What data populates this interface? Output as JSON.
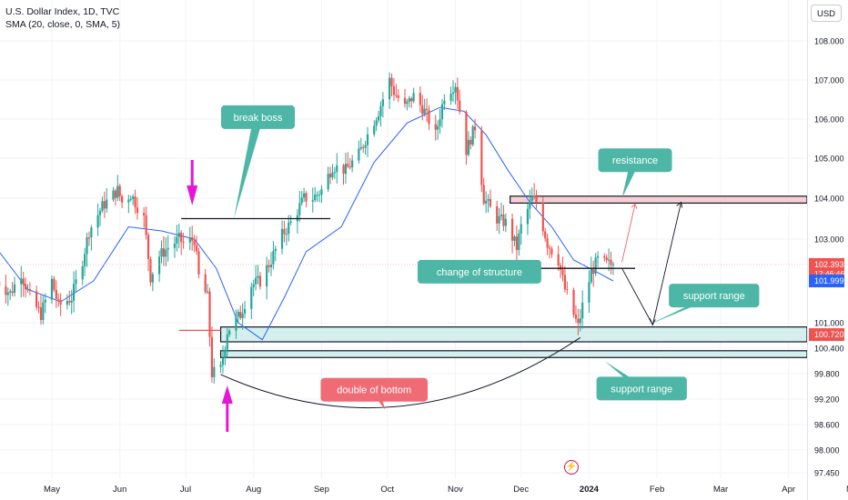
{
  "header": {
    "title": "U.S. Dollar Index, 1D, TVC",
    "indicator": "SMA (20, close, 0, SMA, 5)",
    "currency_button": "USD"
  },
  "icons": {
    "event_marker": "lightning-bolt-icon",
    "top_arrow": "arrow-down-icon",
    "bottom_arrow": "arrow-up-icon"
  },
  "colors": {
    "up": "#26a69a",
    "down": "#ef5350",
    "sma": "#2962ff",
    "label_teal": "#4db6a6",
    "label_red": "#ef6b75",
    "magenta": "#e616d9",
    "resistance_fill": "#f6cfd5",
    "support_fill": "#d4efee"
  },
  "chart_data": {
    "type": "candlestick",
    "ylim": [
      97.3,
      108.4
    ],
    "y_ticks": [
      "108.000",
      "107.000",
      "106.000",
      "105.000",
      "104.000",
      "103.000",
      "101.000",
      "100.400",
      "99.800",
      "99.200",
      "98.600",
      "98.000",
      "97.450"
    ],
    "x_ticks": [
      {
        "label": "May",
        "date": "2023-05-01"
      },
      {
        "label": "Jun",
        "date": "2023-06-01"
      },
      {
        "label": "Jul",
        "date": "2023-07-01"
      },
      {
        "label": "Aug",
        "date": "2023-08-01"
      },
      {
        "label": "Sep",
        "date": "2023-09-01"
      },
      {
        "label": "Oct",
        "date": "2023-10-01"
      },
      {
        "label": "Nov",
        "date": "2023-11-01"
      },
      {
        "label": "Dec",
        "date": "2023-12-01"
      },
      {
        "label": "2024",
        "date": "2024-01-01",
        "bold": true
      },
      {
        "label": "Feb",
        "date": "2024-02-01"
      },
      {
        "label": "Mar",
        "date": "2024-03-01"
      },
      {
        "label": "Apr",
        "date": "2024-04-01"
      },
      {
        "label": "May",
        "date": "2024-05-01"
      }
    ],
    "price_path": [
      [
        "2023-04-06",
        102.0
      ],
      [
        "2023-04-12",
        101.7
      ],
      [
        "2023-04-17",
        102.2
      ],
      [
        "2023-04-21",
        101.6
      ],
      [
        "2023-04-26",
        101.2
      ],
      [
        "2023-05-01",
        102.0
      ],
      [
        "2023-05-04",
        101.4
      ],
      [
        "2023-05-10",
        101.6
      ],
      [
        "2023-05-15",
        102.5
      ],
      [
        "2023-05-18",
        103.2
      ],
      [
        "2023-05-24",
        103.8
      ],
      [
        "2023-05-31",
        104.2
      ],
      [
        "2023-06-02",
        103.9
      ],
      [
        "2023-06-06",
        104.1
      ],
      [
        "2023-06-12",
        103.5
      ],
      [
        "2023-06-15",
        102.1
      ],
      [
        "2023-06-19",
        102.6
      ],
      [
        "2023-06-23",
        102.8
      ],
      [
        "2023-06-28",
        103.0
      ],
      [
        "2023-06-30",
        102.9
      ],
      [
        "2023-07-05",
        103.0
      ],
      [
        "2023-07-07",
        102.1
      ],
      [
        "2023-07-11",
        101.6
      ],
      [
        "2023-07-13",
        99.8
      ],
      [
        "2023-07-17",
        99.9
      ],
      [
        "2023-07-20",
        100.8
      ],
      [
        "2023-07-26",
        101.2
      ],
      [
        "2023-07-31",
        101.9
      ],
      [
        "2023-08-04",
        102.0
      ],
      [
        "2023-08-09",
        102.5
      ],
      [
        "2023-08-14",
        103.1
      ],
      [
        "2023-08-18",
        103.4
      ],
      [
        "2023-08-24",
        104.0
      ],
      [
        "2023-08-28",
        104.0
      ],
      [
        "2023-09-01",
        104.2
      ],
      [
        "2023-09-06",
        104.8
      ],
      [
        "2023-09-12",
        104.7
      ],
      [
        "2023-09-18",
        105.1
      ],
      [
        "2023-09-22",
        105.6
      ],
      [
        "2023-09-27",
        106.2
      ],
      [
        "2023-10-02",
        107.0
      ],
      [
        "2023-10-04",
        106.7
      ],
      [
        "2023-10-09",
        106.3
      ],
      [
        "2023-10-13",
        106.6
      ],
      [
        "2023-10-18",
        106.2
      ],
      [
        "2023-10-23",
        105.6
      ],
      [
        "2023-10-27",
        106.6
      ],
      [
        "2023-11-01",
        106.9
      ],
      [
        "2023-11-06",
        105.2
      ],
      [
        "2023-11-10",
        105.8
      ],
      [
        "2023-11-14",
        104.0
      ],
      [
        "2023-11-20",
        103.5
      ],
      [
        "2023-11-24",
        103.4
      ],
      [
        "2023-11-29",
        102.8
      ],
      [
        "2023-12-01",
        103.3
      ],
      [
        "2023-12-06",
        104.0
      ],
      [
        "2023-12-08",
        103.9
      ],
      [
        "2023-12-13",
        102.9
      ],
      [
        "2023-12-18",
        102.5
      ],
      [
        "2023-12-21",
        101.8
      ],
      [
        "2023-12-27",
        100.9
      ],
      [
        "2023-12-29",
        101.4
      ],
      [
        "2024-01-02",
        102.2
      ],
      [
        "2024-01-05",
        102.5
      ],
      [
        "2024-01-09",
        102.4
      ],
      [
        "2024-01-12",
        102.393
      ]
    ],
    "sma_path": [
      [
        "2023-04-04",
        102.9
      ],
      [
        "2023-04-20",
        101.8
      ],
      [
        "2023-05-05",
        101.5
      ],
      [
        "2023-05-20",
        102.0
      ],
      [
        "2023-06-05",
        103.3
      ],
      [
        "2023-06-20",
        103.2
      ],
      [
        "2023-07-05",
        103.0
      ],
      [
        "2023-07-15",
        102.3
      ],
      [
        "2023-07-25",
        101.0
      ],
      [
        "2023-08-05",
        100.6
      ],
      [
        "2023-08-15",
        101.6
      ],
      [
        "2023-08-25",
        102.7
      ],
      [
        "2023-09-10",
        103.3
      ],
      [
        "2023-09-25",
        104.9
      ],
      [
        "2023-10-10",
        105.9
      ],
      [
        "2023-10-25",
        106.3
      ],
      [
        "2023-11-05",
        106.2
      ],
      [
        "2023-11-15",
        105.6
      ],
      [
        "2023-11-25",
        104.7
      ],
      [
        "2023-12-05",
        103.9
      ],
      [
        "2023-12-15",
        103.3
      ],
      [
        "2023-12-25",
        102.5
      ],
      [
        "2024-01-05",
        102.2
      ],
      [
        "2024-01-12",
        101.999
      ]
    ],
    "price_labels": [
      {
        "value": 102.393,
        "text": "102.393",
        "sub": "12:46:46",
        "color": "#ef5350"
      },
      {
        "value": 101.999,
        "text": "101.999",
        "color": "#2962ff"
      },
      {
        "value": 100.72,
        "text": "100.720",
        "color": "#ef5350"
      }
    ],
    "zones": [
      {
        "name": "resistance",
        "from": "2023-11-26",
        "to": "2024-05-30",
        "top": 104.05,
        "bottom": 103.88,
        "fill": "#f6cfd5"
      },
      {
        "name": "support-upper",
        "from": "2023-07-17",
        "to": "2024-05-30",
        "top": 100.9,
        "bottom": 100.55,
        "fill": "#d4efee"
      },
      {
        "name": "support-lower",
        "from": "2023-07-17",
        "to": "2024-05-30",
        "top": 100.34,
        "bottom": 100.18,
        "fill": "#d4efee"
      }
    ],
    "lines": [
      {
        "name": "break-boss-line",
        "from": [
          "2023-06-29",
          103.5
        ],
        "to": [
          "2023-09-05",
          103.5
        ],
        "color": "#131722"
      },
      {
        "name": "structure-line",
        "from": [
          "2023-12-04",
          102.3
        ],
        "to": [
          "2024-01-22",
          102.3
        ],
        "color": "#131722"
      },
      {
        "name": "low-marker-line",
        "from": [
          "2023-06-28",
          100.82
        ],
        "to": [
          "2023-07-17",
          100.82
        ],
        "color": "#ef5350"
      }
    ],
    "labels": [
      {
        "name": "break-boss-label",
        "text": "break boss",
        "x": "2023-08-03",
        "y": 106.05,
        "color": "#4db6a6",
        "pointer": [
          "2023-07-23",
          103.5
        ]
      },
      {
        "name": "resistance-label",
        "text": "resistance",
        "x": "2024-01-22",
        "y": 104.95,
        "color": "#4db6a6",
        "pointer": [
          "2024-01-16",
          104.0
        ]
      },
      {
        "name": "structure-label",
        "text": "change of structure",
        "x": "2023-11-12",
        "y": 102.22,
        "color": "#4db6a6",
        "pointer": [
          "2023-12-04",
          102.3
        ]
      },
      {
        "name": "support-label-upper",
        "text": "support range",
        "x": "2024-02-27",
        "y": 101.65,
        "color": "#4db6a6",
        "pointer": [
          "2024-01-28",
          100.95
        ]
      },
      {
        "name": "support-label-lower",
        "text": "support range",
        "x": "2024-01-25",
        "y": 99.45,
        "color": "#4db6a6",
        "pointer": [
          "2024-01-08",
          100.1
        ]
      },
      {
        "name": "bottom-label",
        "text": "double of bottom",
        "x": "2023-09-25",
        "y": 99.42,
        "color": "#ef6b75",
        "pointer": [
          "2023-09-30",
          98.95
        ]
      }
    ]
  }
}
